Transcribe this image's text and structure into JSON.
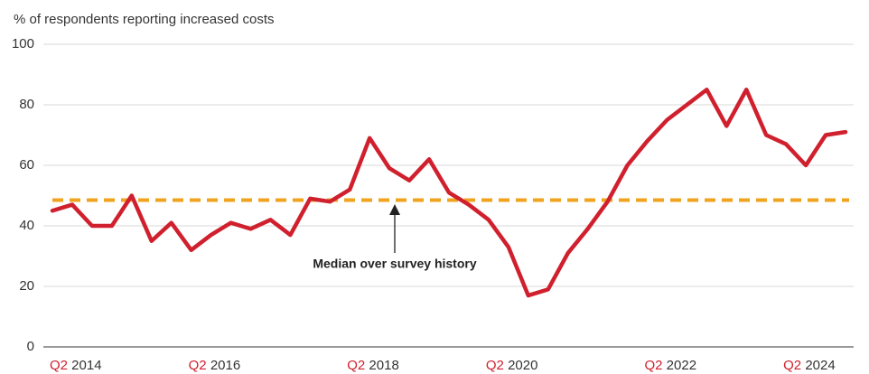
{
  "chart_data": {
    "type": "line",
    "y_axis_label": "% of respondents reporting increased costs",
    "categories": [
      "Q2 2014",
      null,
      null,
      null,
      null,
      null,
      null,
      "Q2 2016",
      null,
      null,
      null,
      null,
      null,
      null,
      null,
      "Q2 2018",
      null,
      null,
      null,
      null,
      null,
      null,
      "Q2 2020",
      null,
      null,
      null,
      null,
      null,
      null,
      null,
      "Q2 2022",
      null,
      null,
      null,
      null,
      null,
      null,
      "Q2 2024",
      null,
      null,
      null
    ],
    "series": [
      {
        "name": "Increased costs",
        "color": "#d0202e",
        "values": [
          45,
          47,
          40,
          40,
          50,
          35,
          41,
          32,
          37,
          41,
          39,
          42,
          37,
          49,
          48,
          52,
          69,
          59,
          55,
          62,
          51,
          47,
          42,
          33,
          17,
          19,
          31,
          39,
          48,
          60,
          68,
          75,
          80,
          85,
          73,
          85,
          70,
          67,
          60,
          70,
          71
        ]
      }
    ],
    "reference_line": {
      "value": 48.5,
      "color": "#f0a31e",
      "label": "Median over survey history"
    },
    "ylim": [
      0,
      100
    ],
    "yticks": [
      0,
      20,
      40,
      60,
      80,
      100
    ],
    "grid": true
  }
}
